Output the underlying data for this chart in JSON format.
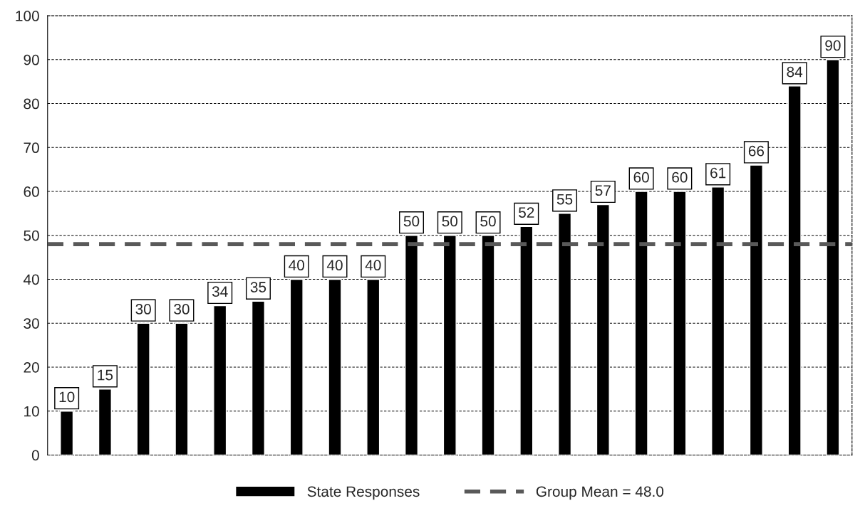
{
  "chart_data": {
    "type": "bar",
    "categories": [
      null,
      null,
      null,
      null,
      null,
      null,
      null,
      null,
      null,
      null,
      null,
      null,
      null,
      null,
      null,
      null,
      null,
      null,
      null,
      null,
      null
    ],
    "series": [
      {
        "name": "State Responses",
        "color": "#000000",
        "values": [
          10,
          15,
          30,
          30,
          34,
          35,
          40,
          40,
          40,
          50,
          50,
          50,
          52,
          55,
          57,
          60,
          60,
          61,
          66,
          84,
          90
        ]
      }
    ],
    "ylim": [
      0,
      100
    ],
    "yticks": [
      0,
      10,
      20,
      30,
      40,
      50,
      60,
      70,
      80,
      90,
      100
    ],
    "ref_lines": [
      {
        "axis": "y",
        "value": 48,
        "label": "Group Mean = 48.0",
        "color": "#595959",
        "line_style": "dashed"
      }
    ],
    "data_labels": true,
    "grid": "y",
    "legend": "bottom"
  }
}
